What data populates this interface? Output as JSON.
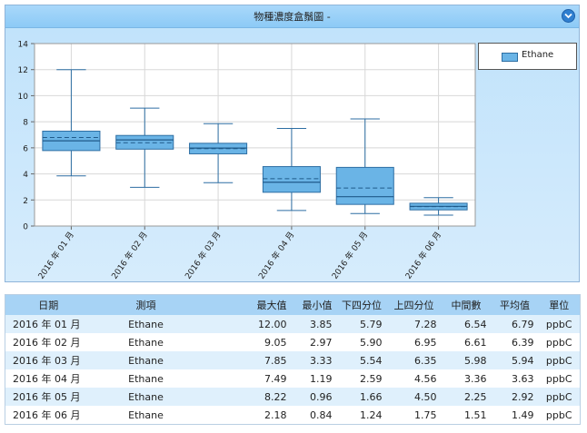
{
  "chart": {
    "title": "物種濃度盒鬚圖 -",
    "legend": {
      "label": "Ethane",
      "color": "#6ab4e6"
    }
  },
  "chart_data": {
    "type": "boxplot",
    "title": "物種濃度盒鬚圖 -",
    "ylim": [
      0,
      14
    ],
    "yticks": [
      0,
      2,
      4,
      6,
      8,
      10,
      12,
      14
    ],
    "grid": true,
    "legend_position": "right",
    "categories": [
      "2016 年 01 月",
      "2016 年 02 月",
      "2016 年 03 月",
      "2016 年 04 月",
      "2016 年 05 月",
      "2016 年 06 月"
    ],
    "series": [
      {
        "name": "Ethane",
        "color": "#6ab4e6",
        "boxes": [
          {
            "max": 12.0,
            "min": 3.85,
            "q1": 5.79,
            "q3": 7.28,
            "median": 6.54,
            "mean": 6.79
          },
          {
            "max": 9.05,
            "min": 2.97,
            "q1": 5.9,
            "q3": 6.95,
            "median": 6.61,
            "mean": 6.39
          },
          {
            "max": 7.85,
            "min": 3.33,
            "q1": 5.54,
            "q3": 6.35,
            "median": 5.98,
            "mean": 5.94
          },
          {
            "max": 7.49,
            "min": 1.19,
            "q1": 2.59,
            "q3": 4.56,
            "median": 3.36,
            "mean": 3.63
          },
          {
            "max": 8.22,
            "min": 0.96,
            "q1": 1.66,
            "q3": 4.5,
            "median": 2.25,
            "mean": 2.92
          },
          {
            "max": 2.18,
            "min": 0.84,
            "q1": 1.24,
            "q3": 1.75,
            "median": 1.51,
            "mean": 1.49
          }
        ]
      }
    ]
  },
  "table": {
    "headers": [
      "日期",
      "測項",
      "最大值",
      "最小值",
      "下四分位",
      "上四分位",
      "中間數",
      "平均值",
      "單位"
    ],
    "rows": [
      [
        "2016 年 01 月",
        "Ethane",
        "12.00",
        "3.85",
        "5.79",
        "7.28",
        "6.54",
        "6.79",
        "ppbC"
      ],
      [
        "2016 年 02 月",
        "Ethane",
        "9.05",
        "2.97",
        "5.90",
        "6.95",
        "6.61",
        "6.39",
        "ppbC"
      ],
      [
        "2016 年 03 月",
        "Ethane",
        "7.85",
        "3.33",
        "5.54",
        "6.35",
        "5.98",
        "5.94",
        "ppbC"
      ],
      [
        "2016 年 04 月",
        "Ethane",
        "7.49",
        "1.19",
        "2.59",
        "4.56",
        "3.36",
        "3.63",
        "ppbC"
      ],
      [
        "2016 年 05 月",
        "Ethane",
        "8.22",
        "0.96",
        "1.66",
        "4.50",
        "2.25",
        "2.92",
        "ppbC"
      ],
      [
        "2016 年 06 月",
        "Ethane",
        "2.18",
        "0.84",
        "1.24",
        "1.75",
        "1.51",
        "1.49",
        "ppbC"
      ]
    ]
  }
}
